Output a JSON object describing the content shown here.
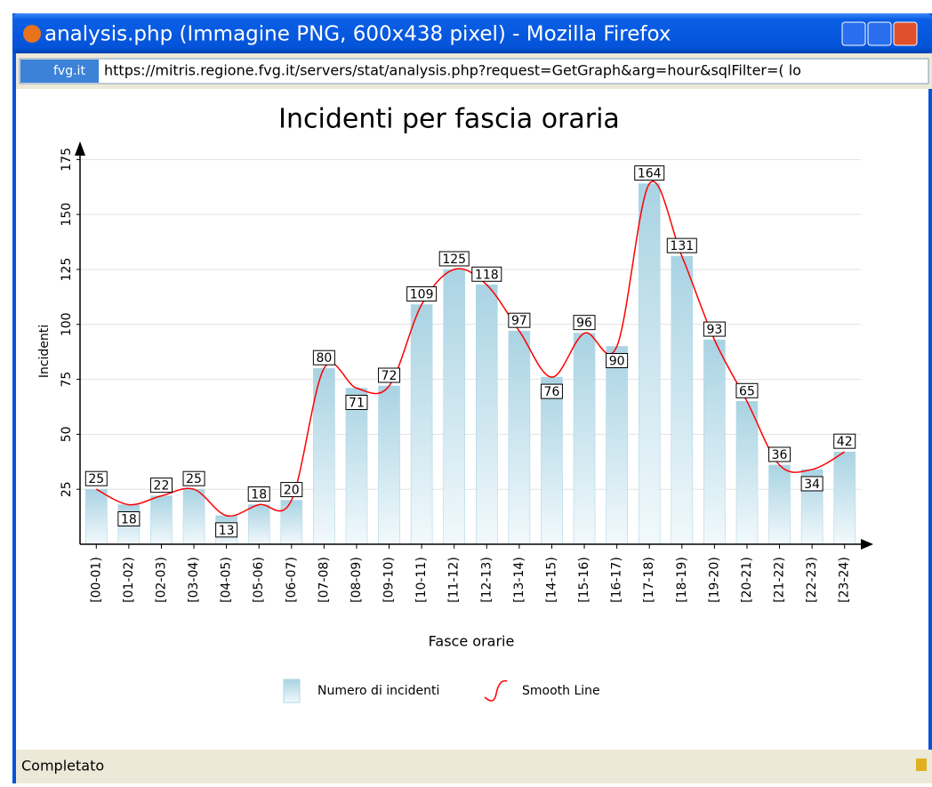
{
  "window": {
    "title": "analysis.php (Immagine PNG, 600x438 pixel) - Mozilla Firefox",
    "site": "fvg.it",
    "url": "https://mitris.regione.fvg.it/servers/stat/analysis.php?request=GetGraph&arg=hour&sqlFilter=( lo",
    "status": "Completato"
  },
  "chart_data": {
    "type": "bar",
    "title": "Incidenti per fascia oraria",
    "xlabel": "Fasce orarie",
    "ylabel": "Incidenti",
    "categories": [
      "[00-01)",
      "[01-02)",
      "[02-03)",
      "[03-04)",
      "[04-05)",
      "[05-06)",
      "[06-07)",
      "[07-08)",
      "[08-09)",
      "[09-10)",
      "[10-11)",
      "[11-12)",
      "[12-13)",
      "[13-14)",
      "[14-15)",
      "[15-16)",
      "[16-17)",
      "[17-18)",
      "[18-19)",
      "[19-20)",
      "[20-21)",
      "[21-22)",
      "[22-23)",
      "[23-24)"
    ],
    "series": [
      {
        "name": "Numero di incidenti",
        "color": "#add8e6",
        "values": [
          25,
          18,
          22,
          25,
          13,
          18,
          20,
          80,
          71,
          72,
          109,
          125,
          118,
          97,
          76,
          96,
          90,
          164,
          131,
          93,
          65,
          36,
          34,
          42
        ]
      },
      {
        "name": "Smooth Line",
        "color": "#ff0000",
        "values": [
          25,
          18,
          22,
          25,
          13,
          18,
          20,
          80,
          71,
          72,
          109,
          125,
          118,
          97,
          76,
          96,
          90,
          164,
          131,
          93,
          65,
          36,
          34,
          42
        ]
      }
    ],
    "ylim": [
      0,
      180
    ],
    "yticks": [
      25,
      50,
      75,
      100,
      125,
      150,
      175
    ],
    "grid": true
  }
}
